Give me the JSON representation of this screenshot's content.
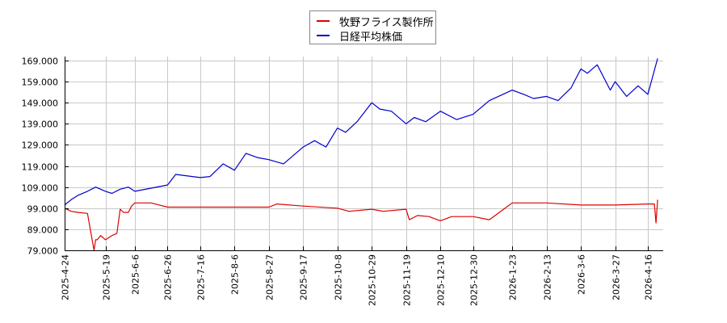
{
  "legend": {
    "series0": "牧野フライス製作所",
    "series1": "日経平均株価"
  },
  "colors": {
    "series0": "#dd0000",
    "series1": "#0000cc",
    "grid": "#c8c8c8",
    "axis": "#000000"
  },
  "chart_data": {
    "type": "line",
    "title": "",
    "xlabel": "",
    "ylabel": "",
    "ylim": [
      79,
      169
    ],
    "grid": true,
    "legend_position": "top-center",
    "y_ticks": [
      "79.000",
      "89.000",
      "99.000",
      "109.000",
      "119.000",
      "129.000",
      "139.000",
      "149.000",
      "159.000",
      "169.000"
    ],
    "x_ticks": [
      "2025-4-24",
      "2025-5-19",
      "2025-6-6",
      "2025-6-26",
      "2025-7-16",
      "2025-8-6",
      "2025-8-27",
      "2025-9-17",
      "2025-10-8",
      "2025-10-29",
      "2025-11-19",
      "2025-12-10",
      "2025-12-30",
      "2026-1-23",
      "2026-2-13",
      "2026-3-6",
      "2026-3-27",
      "2026-4-16"
    ],
    "series": [
      {
        "name": "牧野フライス製作所",
        "x": [
          "2025-4-24",
          "2025-4-28",
          "2025-5-2",
          "2025-5-8",
          "2025-5-12",
          "2025-5-13",
          "2025-5-14",
          "2025-5-16",
          "2025-5-19",
          "2025-5-21",
          "2025-5-23",
          "2025-5-26",
          "2025-5-28",
          "2025-5-30",
          "2025-6-2",
          "2025-6-4",
          "2025-6-6",
          "2025-6-16",
          "2025-6-26",
          "2025-7-16",
          "2025-8-6",
          "2025-8-27",
          "2025-9-1",
          "2025-9-17",
          "2025-10-8",
          "2025-10-15",
          "2025-10-29",
          "2025-11-5",
          "2025-11-19",
          "2025-11-21",
          "2025-11-26",
          "2025-12-3",
          "2025-12-10",
          "2025-12-17",
          "2025-12-30",
          "2026-1-9",
          "2026-1-23",
          "2026-2-13",
          "2026-3-6",
          "2026-3-27",
          "2026-4-16",
          "2026-4-20",
          "2026-4-21",
          "2026-4-22"
        ],
        "values": [
          99,
          97.5,
          97,
          96.5,
          79,
          84,
          84,
          86,
          84,
          85,
          86,
          87,
          98.5,
          97,
          97,
          100,
          101.5,
          101.5,
          99.5,
          99.5,
          99.5,
          99.5,
          101,
          100,
          99,
          97.5,
          98.5,
          97.5,
          98.5,
          93.5,
          95.5,
          95,
          93,
          95,
          95,
          93.5,
          101.5,
          101.5,
          100.5,
          100.5,
          101,
          101,
          92,
          103
        ]
      },
      {
        "name": "日経平均株価",
        "x": [
          "2025-4-24",
          "2025-4-28",
          "2025-5-2",
          "2025-5-8",
          "2025-5-13",
          "2025-5-19",
          "2025-5-23",
          "2025-5-28",
          "2025-6-2",
          "2025-6-6",
          "2025-6-16",
          "2025-6-26",
          "2025-7-1",
          "2025-7-16",
          "2025-7-22",
          "2025-7-30",
          "2025-8-6",
          "2025-8-13",
          "2025-8-20",
          "2025-8-27",
          "2025-9-5",
          "2025-9-17",
          "2025-9-24",
          "2025-10-1",
          "2025-10-8",
          "2025-10-13",
          "2025-10-20",
          "2025-10-29",
          "2025-11-3",
          "2025-11-10",
          "2025-11-19",
          "2025-11-24",
          "2025-12-1",
          "2025-12-10",
          "2025-12-20",
          "2025-12-30",
          "2026-1-9",
          "2026-1-23",
          "2026-1-30",
          "2026-2-5",
          "2026-2-13",
          "2026-2-20",
          "2026-2-28",
          "2026-3-6",
          "2026-3-10",
          "2026-3-16",
          "2026-3-24",
          "2026-3-27",
          "2026-4-3",
          "2026-4-10",
          "2026-4-16",
          "2026-4-22"
        ],
        "values": [
          100.5,
          103,
          105,
          107,
          109,
          107,
          106,
          108,
          109,
          107,
          108.5,
          110,
          115,
          113.5,
          114,
          120,
          117,
          125,
          123,
          122,
          120,
          128,
          131,
          128,
          137,
          135,
          140,
          149,
          146,
          145,
          139,
          142,
          140,
          145,
          141,
          143.5,
          150,
          155,
          153,
          151,
          152,
          150,
          156,
          165,
          163,
          167,
          155,
          159,
          152,
          157,
          153,
          170
        ]
      }
    ]
  }
}
